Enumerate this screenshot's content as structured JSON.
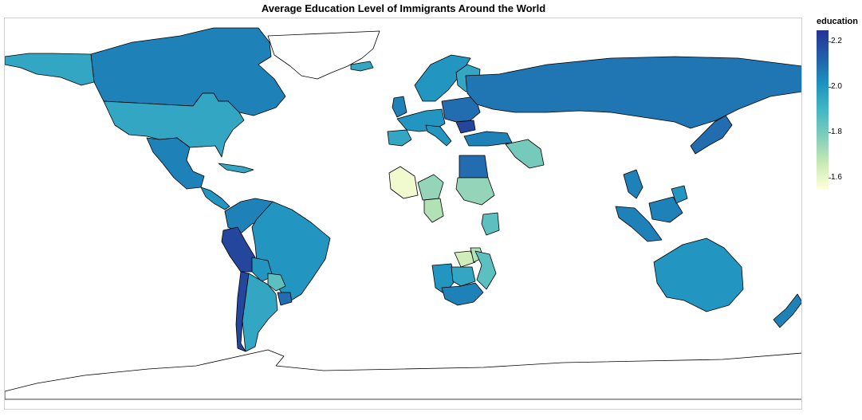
{
  "title": "Average Education Level of Immigrants Around the World",
  "legend": {
    "title": "education",
    "min": 1.55,
    "max": 2.25,
    "ticks": [
      "2.2",
      "2.0",
      "1.8",
      "1.6"
    ],
    "tick_values": [
      2.2,
      2.0,
      1.8,
      1.6
    ],
    "colorscale": [
      "#ffffd9",
      "#c7e9b4",
      "#7fcdbb",
      "#41b6c4",
      "#1d91c0",
      "#225ea8",
      "#253494"
    ]
  },
  "colors": {
    "no_data": "#ffffff",
    "border": "#000000"
  },
  "map_data": {
    "type": "choropleth",
    "regions": [
      {
        "name": "Greenland",
        "value": null
      },
      {
        "name": "Canada",
        "value": 2.05
      },
      {
        "name": "Alaska",
        "value": 1.95
      },
      {
        "name": "Iceland",
        "value": 1.95
      },
      {
        "name": "United States",
        "value": 1.95
      },
      {
        "name": "Mexico",
        "value": 2.05
      },
      {
        "name": "Central America",
        "value": 2.0
      },
      {
        "name": "Caribbean",
        "value": 1.95
      },
      {
        "name": "Venezuela / Colombia",
        "value": 2.05
      },
      {
        "name": "Peru / Ecuador",
        "value": 2.2
      },
      {
        "name": "Brazil",
        "value": 2.0
      },
      {
        "name": "Bolivia",
        "value": 2.0
      },
      {
        "name": "Paraguay",
        "value": 1.85
      },
      {
        "name": "Chile",
        "value": 2.2
      },
      {
        "name": "Argentina",
        "value": 1.95
      },
      {
        "name": "Uruguay",
        "value": 2.1
      },
      {
        "name": "Scandinavia",
        "value": 2.0
      },
      {
        "name": "Finland",
        "value": 1.95
      },
      {
        "name": "United Kingdom",
        "value": 2.05
      },
      {
        "name": "Western Europe",
        "value": 2.0
      },
      {
        "name": "Iberia",
        "value": 1.95
      },
      {
        "name": "Italy",
        "value": 2.0
      },
      {
        "name": "Eastern Europe",
        "value": 2.1
      },
      {
        "name": "Romania",
        "value": 2.2
      },
      {
        "name": "Russia",
        "value": 2.08
      },
      {
        "name": "Turkey",
        "value": 2.05
      },
      {
        "name": "Iran",
        "value": 1.8
      },
      {
        "name": "Egypt",
        "value": 2.1
      },
      {
        "name": "Sudan",
        "value": 1.75
      },
      {
        "name": "Mali",
        "value": 1.58
      },
      {
        "name": "Niger",
        "value": 1.75
      },
      {
        "name": "Nigeria",
        "value": 1.7
      },
      {
        "name": "Kenya",
        "value": 1.85
      },
      {
        "name": "Zambia",
        "value": 1.65
      },
      {
        "name": "Malawi",
        "value": 1.7
      },
      {
        "name": "Mozambique",
        "value": 1.85
      },
      {
        "name": "Namibia",
        "value": 2.0
      },
      {
        "name": "Botswana",
        "value": 1.95
      },
      {
        "name": "South Africa",
        "value": 2.05
      },
      {
        "name": "Thailand",
        "value": 2.05
      },
      {
        "name": "Malaysia / Indonesia",
        "value": 2.05
      },
      {
        "name": "Philippines",
        "value": 2.0
      },
      {
        "name": "Japan",
        "value": 2.1
      },
      {
        "name": "Australia",
        "value": 2.0
      },
      {
        "name": "New Zealand",
        "value": 2.05
      },
      {
        "name": "Antarctica",
        "value": null
      }
    ]
  }
}
